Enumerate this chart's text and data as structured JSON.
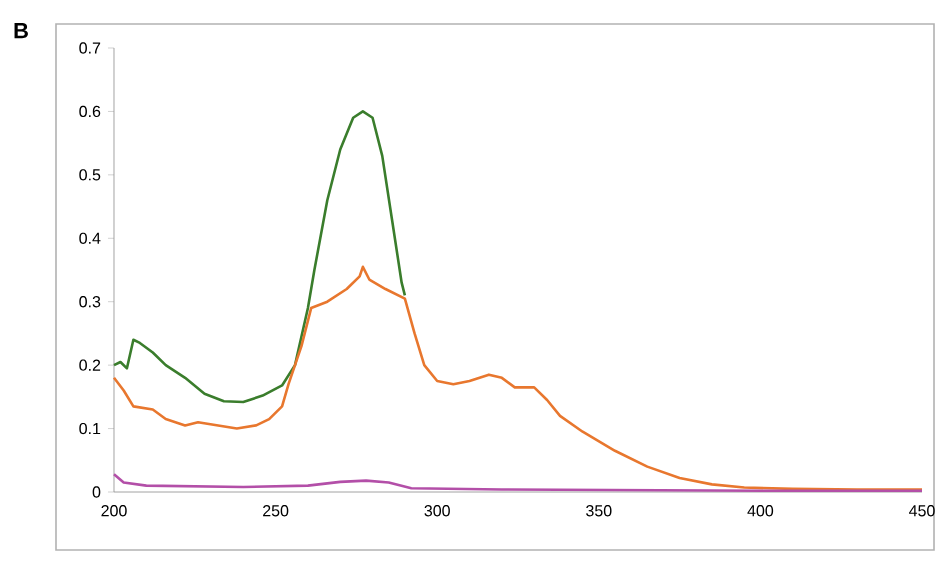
{
  "chart_data": {
    "type": "line",
    "annotations": [
      "B"
    ],
    "xlim": [
      200,
      450
    ],
    "ylim": [
      0,
      0.7
    ],
    "xticks": [
      200,
      250,
      300,
      350,
      400,
      450
    ],
    "yticks": [
      0,
      0.1,
      0.2,
      0.3,
      0.4,
      0.5,
      0.6,
      0.7
    ],
    "grid": false,
    "marker": "none",
    "line_style": "solid",
    "series": [
      {
        "color": "#3a7d2c",
        "x": [
          200,
          202,
          204,
          206,
          208,
          212,
          216,
          222,
          228,
          234,
          240,
          246,
          252,
          256,
          260,
          262,
          266,
          270,
          274,
          277,
          280,
          283,
          286,
          289,
          290
        ],
        "values": [
          0.2,
          0.205,
          0.195,
          0.24,
          0.235,
          0.22,
          0.2,
          0.18,
          0.155,
          0.143,
          0.142,
          0.152,
          0.168,
          0.2,
          0.29,
          0.35,
          0.46,
          0.54,
          0.59,
          0.6,
          0.59,
          0.53,
          0.43,
          0.33,
          0.31
        ]
      },
      {
        "color": "#e8772e",
        "x": [
          200,
          203,
          206,
          212,
          216,
          222,
          226,
          232,
          238,
          244,
          248,
          252,
          254,
          258,
          261,
          266,
          272,
          276,
          277,
          279,
          284,
          290,
          293,
          296,
          300,
          305,
          310,
          316,
          320,
          324,
          330,
          334,
          338,
          345,
          355,
          365,
          375,
          385,
          395,
          410,
          430,
          450
        ],
        "values": [
          0.18,
          0.16,
          0.135,
          0.13,
          0.115,
          0.105,
          0.11,
          0.105,
          0.1,
          0.105,
          0.115,
          0.135,
          0.17,
          0.23,
          0.29,
          0.3,
          0.32,
          0.34,
          0.355,
          0.335,
          0.32,
          0.305,
          0.25,
          0.2,
          0.175,
          0.17,
          0.175,
          0.185,
          0.18,
          0.165,
          0.165,
          0.145,
          0.12,
          0.095,
          0.065,
          0.04,
          0.022,
          0.012,
          0.007,
          0.005,
          0.004,
          0.004
        ]
      },
      {
        "color": "#b34fa8",
        "x": [
          200,
          203,
          210,
          240,
          260,
          270,
          278,
          285,
          292,
          320,
          360,
          400,
          450
        ],
        "values": [
          0.028,
          0.015,
          0.01,
          0.008,
          0.01,
          0.016,
          0.018,
          0.015,
          0.006,
          0.004,
          0.003,
          0.002,
          0.002
        ]
      }
    ]
  }
}
